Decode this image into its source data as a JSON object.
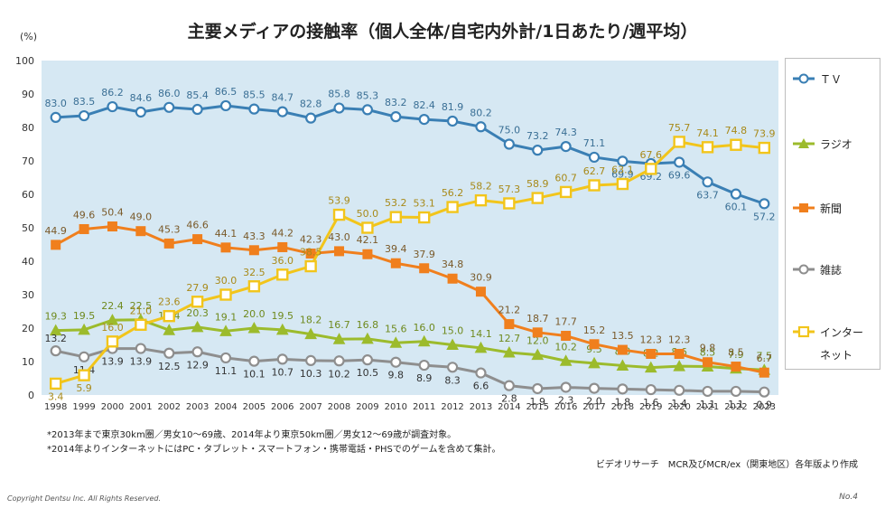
{
  "page": {
    "title": "主要メディアの接触率（個人全体/自宅内外計/1日あたり/週平均）",
    "unit": "(%)",
    "note1": "*2013年まで東京30km圏／男女10～69歳、2014年より東京50km圏／男女12～69歳が調査対象。",
    "note2": "*2014年よりインターネットにはPC・タブレット・スマートフォン・携帯電話・PHSでのゲームを含めて集計。",
    "source": "ビデオリサーチ　MCR及びMCR/ex（関東地区）各年版より作成",
    "copyright": "Copyright Dentsu Inc. All Rights Reserved.",
    "page_no": "No.4"
  },
  "legend": {
    "items": [
      {
        "label": "ＴＶ",
        "color": "#3a7fb4"
      },
      {
        "label": "ラジオ",
        "color": "#9cbb2c"
      },
      {
        "label": "新聞",
        "color": "#f07f1d"
      },
      {
        "label": "雑誌",
        "color": "#8e8e8e"
      },
      {
        "label": "インター",
        "label2": "ネット",
        "color": "#f2c51b"
      }
    ]
  },
  "chart_data": {
    "type": "line",
    "title": "主要メディアの接触率（個人全体/自宅内外計/1日あたり/週平均）",
    "xlabel": "",
    "ylabel": "(%)",
    "ylim": [
      0,
      100
    ],
    "yticks": [
      0,
      10,
      20,
      30,
      40,
      50,
      60,
      70,
      80,
      90,
      100
    ],
    "categories": [
      "1998",
      "1999",
      "2000",
      "2001",
      "2002",
      "2003",
      "2004",
      "2005",
      "2006",
      "2007",
      "2008",
      "2009",
      "2010",
      "2011",
      "2012",
      "2013",
      "2014",
      "2015",
      "2016",
      "2017",
      "2018",
      "2019",
      "2020",
      "2021",
      "2022",
      "2023"
    ],
    "series": [
      {
        "name": "ＴＶ",
        "color": "#3a7fb4",
        "marker": "circle",
        "values": [
          83.0,
          83.5,
          86.2,
          84.6,
          86.0,
          85.4,
          86.5,
          85.5,
          84.7,
          82.8,
          85.8,
          85.3,
          83.2,
          82.4,
          81.9,
          80.2,
          75.0,
          73.2,
          74.3,
          71.1,
          69.9,
          69.2,
          69.6,
          63.7,
          60.1,
          57.2
        ]
      },
      {
        "name": "ラジオ",
        "color": "#9cbb2c",
        "marker": "triangle",
        "values": [
          19.3,
          19.5,
          22.4,
          22.5,
          19.4,
          20.3,
          19.1,
          20.0,
          19.5,
          18.2,
          16.7,
          16.8,
          15.6,
          16.0,
          15.0,
          14.1,
          12.7,
          12.0,
          10.2,
          9.5,
          8.8,
          8.2,
          8.6,
          8.5,
          7.9,
          7.5
        ]
      },
      {
        "name": "新聞",
        "color": "#f07f1d",
        "marker": "square",
        "values": [
          44.9,
          49.6,
          50.4,
          49.0,
          45.3,
          46.6,
          44.1,
          43.3,
          44.2,
          42.3,
          43.0,
          42.1,
          39.4,
          37.9,
          34.8,
          30.9,
          21.2,
          18.7,
          17.7,
          15.2,
          13.5,
          12.3,
          12.3,
          9.8,
          8.5,
          6.7
        ]
      },
      {
        "name": "雑誌",
        "color": "#8e8e8e",
        "marker": "circle",
        "values": [
          13.2,
          11.4,
          13.9,
          13.9,
          12.5,
          12.9,
          11.1,
          10.1,
          10.7,
          10.3,
          10.2,
          10.5,
          9.8,
          8.9,
          8.3,
          6.6,
          2.8,
          1.9,
          2.3,
          2.0,
          1.8,
          1.6,
          1.4,
          1.1,
          1.1,
          0.9
        ]
      },
      {
        "name": "インターネット",
        "color": "#f2c51b",
        "marker": "square-open",
        "values": [
          3.4,
          5.9,
          16.0,
          21.0,
          23.6,
          27.9,
          30.0,
          32.5,
          36.0,
          38.5,
          53.9,
          50.0,
          53.2,
          53.1,
          56.2,
          58.2,
          57.3,
          58.9,
          60.7,
          62.7,
          63.1,
          67.6,
          75.7,
          74.1,
          74.8,
          73.9
        ]
      }
    ]
  }
}
